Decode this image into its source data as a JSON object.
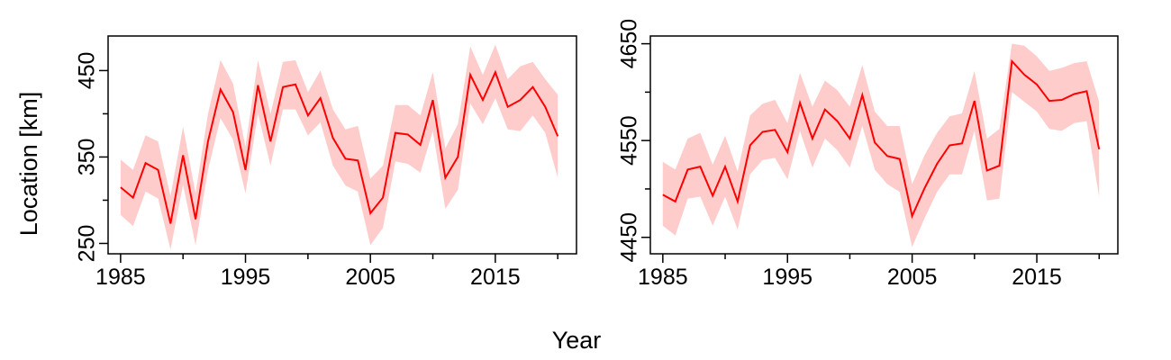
{
  "chart_data": [
    {
      "type": "line",
      "title": "",
      "xlabel": "",
      "ylabel": "Location [km]",
      "xlim": [
        1984,
        2021.5
      ],
      "ylim": [
        238,
        490
      ],
      "x_ticks": [
        1985,
        1995,
        2005,
        2015
      ],
      "x_tick_labels": [
        "1985",
        "1995",
        "2005",
        "2015"
      ],
      "y_ticks": [
        250,
        350,
        450
      ],
      "y_tick_labels": [
        "250",
        "350",
        "450"
      ],
      "grid": false,
      "line_color": "#ff0000",
      "band_color": "#ffcccc",
      "x": [
        1985,
        1986,
        1987,
        1988,
        1989,
        1990,
        1991,
        1992,
        1993,
        1994,
        1995,
        1996,
        1997,
        1998,
        1999,
        2000,
        2001,
        2002,
        2003,
        2004,
        2005,
        2006,
        2007,
        2008,
        2009,
        2010,
        2011,
        2012,
        2013,
        2014,
        2015,
        2016,
        2017,
        2018,
        2019,
        2020
      ],
      "series": [
        {
          "values": [
            315,
            303,
            343,
            335,
            273,
            352,
            278,
            368,
            428,
            402,
            335,
            433,
            368,
            431,
            434,
            398,
            418,
            372,
            348,
            346,
            285,
            303,
            378,
            376,
            364,
            416,
            326,
            350,
            445,
            416,
            448,
            408,
            416,
            431,
            408,
            374
          ],
          "lower": [
            283,
            270,
            310,
            302,
            243,
            318,
            248,
            335,
            395,
            370,
            308,
            400,
            340,
            405,
            405,
            375,
            390,
            340,
            317,
            310,
            248,
            268,
            345,
            342,
            332,
            380,
            290,
            312,
            412,
            388,
            418,
            382,
            380,
            398,
            378,
            326
          ],
          "upper": [
            347,
            335,
            375,
            368,
            305,
            385,
            308,
            400,
            462,
            435,
            362,
            462,
            400,
            460,
            462,
            425,
            450,
            405,
            382,
            386,
            325,
            340,
            410,
            410,
            398,
            448,
            360,
            388,
            478,
            445,
            480,
            440,
            455,
            460,
            440,
            422
          ]
        }
      ]
    },
    {
      "type": "line",
      "title": "",
      "xlabel": "Year",
      "ylabel": "",
      "xlim": [
        1984,
        2021.5
      ],
      "ylim": [
        4433,
        4658
      ],
      "x_ticks": [
        1985,
        1995,
        2005,
        2015
      ],
      "x_tick_labels": [
        "1985",
        "1995",
        "2005",
        "2015"
      ],
      "y_ticks": [
        4450,
        4550,
        4650
      ],
      "y_tick_labels": [
        "4450",
        "4550",
        "4650"
      ],
      "grid": false,
      "line_color": "#ff0000",
      "band_color": "#ffcccc",
      "x": [
        1985,
        1986,
        1987,
        1988,
        1989,
        1990,
        1991,
        1992,
        1993,
        1994,
        1995,
        1996,
        1997,
        1998,
        1999,
        2000,
        2001,
        2002,
        2003,
        2004,
        2005,
        2006,
        2007,
        2008,
        2009,
        2010,
        2011,
        2012,
        2013,
        2014,
        2015,
        2016,
        2017,
        2018,
        2019,
        2020
      ],
      "series": [
        {
          "values": [
            4494,
            4487,
            4520,
            4523,
            4493,
            4523,
            4487,
            4545,
            4559,
            4561,
            4538,
            4589,
            4552,
            4582,
            4570,
            4552,
            4597,
            4548,
            4534,
            4531,
            4472,
            4501,
            4526,
            4545,
            4547,
            4591,
            4519,
            4524,
            4632,
            4618,
            4608,
            4591,
            4592,
            4598,
            4601,
            4541
          ],
          "lower": [
            4462,
            4452,
            4490,
            4492,
            4462,
            4492,
            4458,
            4515,
            4530,
            4532,
            4510,
            4560,
            4522,
            4552,
            4540,
            4522,
            4565,
            4520,
            4505,
            4497,
            4440,
            4470,
            4497,
            4515,
            4515,
            4560,
            4488,
            4490,
            4600,
            4590,
            4580,
            4562,
            4560,
            4568,
            4570,
            4492
          ],
          "upper": [
            4528,
            4520,
            4552,
            4558,
            4525,
            4555,
            4518,
            4576,
            4588,
            4592,
            4568,
            4620,
            4585,
            4612,
            4602,
            4585,
            4628,
            4580,
            4565,
            4565,
            4505,
            4535,
            4558,
            4575,
            4578,
            4622,
            4552,
            4562,
            4650,
            4648,
            4637,
            4622,
            4625,
            4630,
            4632,
            4590
          ]
        }
      ]
    }
  ]
}
